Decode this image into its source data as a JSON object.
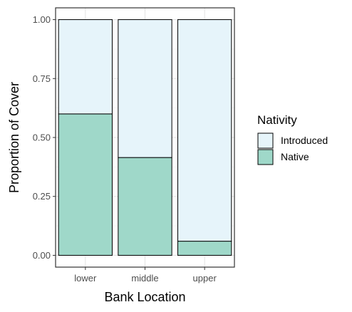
{
  "chart_data": {
    "type": "bar",
    "stacked": true,
    "categories": [
      "lower",
      "middle",
      "upper"
    ],
    "series": [
      {
        "name": "Native",
        "values": [
          0.6,
          0.415,
          0.06
        ],
        "color": "#9fd8c9"
      },
      {
        "name": "Introduced",
        "values": [
          0.4,
          0.585,
          0.94
        ],
        "color": "#e6f4fa"
      }
    ],
    "xlabel": "Bank Location",
    "ylabel": "Proportion of Cover",
    "ylim": [
      -0.05,
      1.05
    ],
    "yticks": [
      0.0,
      0.25,
      0.5,
      0.75,
      1.0
    ],
    "ytick_labels": [
      "0.00",
      "0.25",
      "0.50",
      "0.75",
      "1.00"
    ],
    "grid": true,
    "legend": {
      "title": "Nativity",
      "placement": "right",
      "order": [
        "Introduced",
        "Native"
      ]
    }
  }
}
